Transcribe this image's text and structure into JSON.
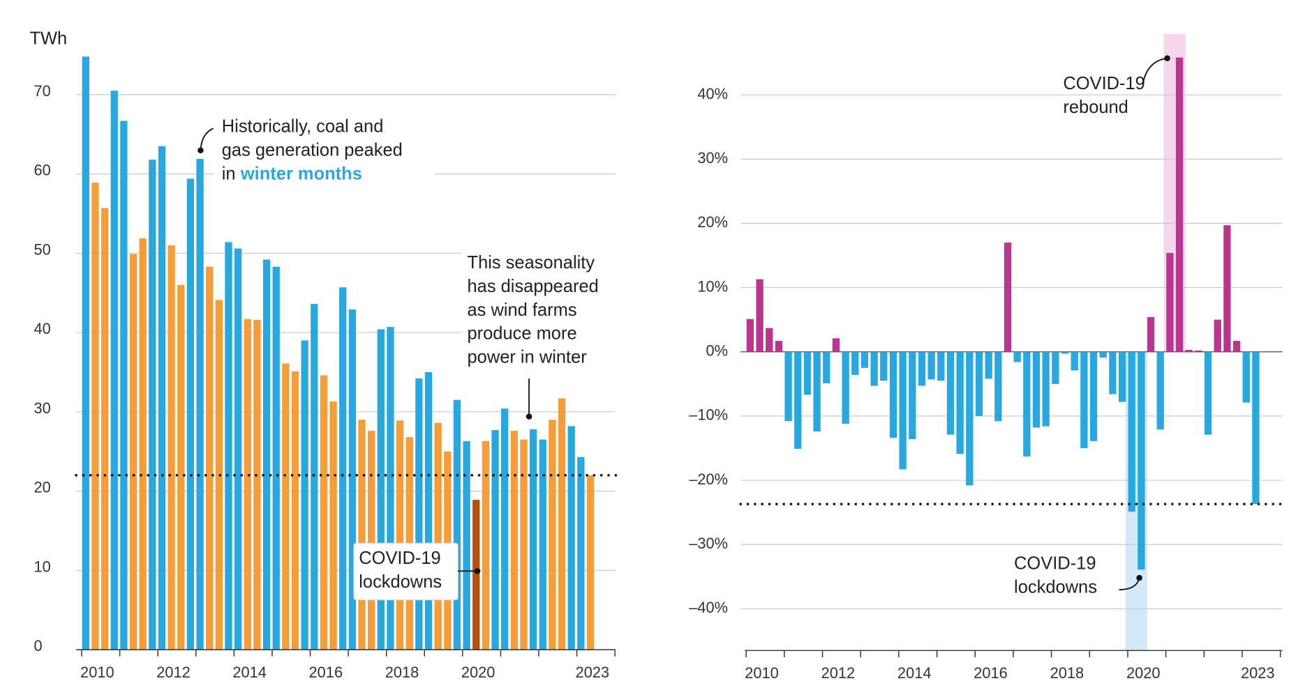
{
  "chart_data": [
    {
      "type": "bar",
      "y_label": "TWh",
      "categories": [
        "2010",
        null,
        null,
        null,
        null,
        null,
        null,
        null,
        "2012",
        null,
        null,
        null,
        null,
        null,
        null,
        null,
        "2014",
        null,
        null,
        null,
        null,
        null,
        null,
        null,
        "2016",
        null,
        null,
        null,
        null,
        null,
        null,
        null,
        "2018",
        null,
        null,
        null,
        null,
        null,
        null,
        null,
        "2020",
        null,
        null,
        null,
        null,
        null,
        null,
        null,
        null,
        null,
        null,
        null,
        "2023",
        null
      ],
      "values": [
        74.8,
        58.9,
        55.7,
        70.5,
        66.7,
        49.9,
        51.9,
        61.8,
        63.5,
        51.0,
        46.0,
        59.4,
        61.9,
        48.3,
        44.1,
        51.4,
        50.6,
        41.7,
        41.6,
        49.2,
        48.3,
        36.1,
        35.1,
        39.0,
        43.6,
        34.6,
        31.3,
        45.7,
        42.9,
        29.0,
        27.6,
        40.4,
        40.7,
        28.9,
        26.8,
        34.2,
        35.0,
        28.6,
        25.0,
        31.5,
        26.3,
        18.9,
        26.3,
        27.7,
        30.4,
        27.6,
        26.5,
        27.8,
        26.5,
        29.0,
        31.7,
        28.2,
        24.3,
        22.0
      ],
      "colors": [
        "#29a8df",
        "#f59d38",
        "#f59d38",
        "#29a8df",
        "#29a8df",
        "#f59d38",
        "#f59d38",
        "#29a8df",
        "#29a8df",
        "#f59d38",
        "#f59d38",
        "#29a8df",
        "#29a8df",
        "#f59d38",
        "#f59d38",
        "#29a8df",
        "#29a8df",
        "#f59d38",
        "#f59d38",
        "#29a8df",
        "#29a8df",
        "#f59d38",
        "#f59d38",
        "#29a8df",
        "#29a8df",
        "#f59d38",
        "#f59d38",
        "#29a8df",
        "#29a8df",
        "#f59d38",
        "#f59d38",
        "#29a8df",
        "#29a8df",
        "#f59d38",
        "#f59d38",
        "#29a8df",
        "#29a8df",
        "#f59d38",
        "#f59d38",
        "#29a8df",
        "#29a8df",
        "#b5510f",
        "#f59d38",
        "#29a8df",
        "#29a8df",
        "#f59d38",
        "#f59d38",
        "#29a8df",
        "#29a8df",
        "#f59d38",
        "#f59d38",
        "#29a8df",
        "#29a8df",
        "#f59d38"
      ],
      "ylim": [
        0,
        76
      ],
      "yticks": [
        0,
        10,
        20,
        30,
        40,
        50,
        60,
        70
      ],
      "grid": true,
      "reference_line": 22.0,
      "annotations": [
        {
          "lines": [
            "Historically, coal and",
            "gas generation peaked",
            "in"
          ],
          "highlight": "winter months",
          "highlight_color": "#29a8df"
        },
        {
          "lines": [
            "This seasonality",
            "has disappeared",
            "as wind farms",
            "produce more",
            "power in winter"
          ]
        },
        {
          "lines": [
            "COVID-19",
            "lockdowns"
          ]
        }
      ]
    },
    {
      "type": "bar",
      "categories": [
        "2010",
        null,
        null,
        null,
        null,
        null,
        null,
        null,
        "2012",
        null,
        null,
        null,
        null,
        null,
        null,
        null,
        "2014",
        null,
        null,
        null,
        null,
        null,
        null,
        null,
        "2016",
        null,
        null,
        null,
        null,
        null,
        null,
        null,
        "2018",
        null,
        null,
        null,
        null,
        null,
        null,
        null,
        "2020",
        null,
        null,
        null,
        null,
        null,
        null,
        null,
        null,
        null,
        null,
        null,
        "2023",
        null
      ],
      "values": [
        5.1,
        11.3,
        3.7,
        1.7,
        -10.8,
        -15.1,
        -6.7,
        -12.4,
        -4.9,
        2.1,
        -11.2,
        -3.6,
        -2.5,
        -5.3,
        -4.5,
        -13.4,
        -18.3,
        -13.6,
        -5.3,
        -4.3,
        -4.5,
        -12.9,
        -15.9,
        -20.8,
        -10.0,
        -4.2,
        -10.8,
        17.0,
        -1.6,
        -16.3,
        -11.8,
        -11.6,
        -5.0,
        -0.3,
        -2.9,
        -15.0,
        -13.9,
        -0.9,
        -6.6,
        -7.8,
        -24.9,
        -33.9,
        5.4,
        -12.1,
        15.4,
        45.8,
        0.3,
        0.2,
        -12.9,
        5.0,
        19.7,
        1.7,
        -7.9,
        -23.7
      ],
      "positive_color": "#b8368f",
      "negative_color": "#29a8df",
      "ylim": [
        -46.5,
        49.5
      ],
      "yticks": [
        {
          "value": -40,
          "label": "–40%"
        },
        {
          "value": -30,
          "label": "–30%"
        },
        {
          "value": -20,
          "label": "–20%"
        },
        {
          "value": -10,
          "label": "–10%"
        },
        {
          "value": 0,
          "label": "0%"
        },
        {
          "value": 10,
          "label": "10%"
        },
        {
          "value": 20,
          "label": "20%"
        },
        {
          "value": 30,
          "label": "30%"
        },
        {
          "value": 40,
          "label": "40%"
        }
      ],
      "grid": true,
      "reference_line": -23.7,
      "annotations": [
        {
          "lines": [
            "COVID-19",
            "rebound"
          ]
        },
        {
          "lines": [
            "COVID-19",
            "lockdowns"
          ]
        }
      ]
    }
  ]
}
